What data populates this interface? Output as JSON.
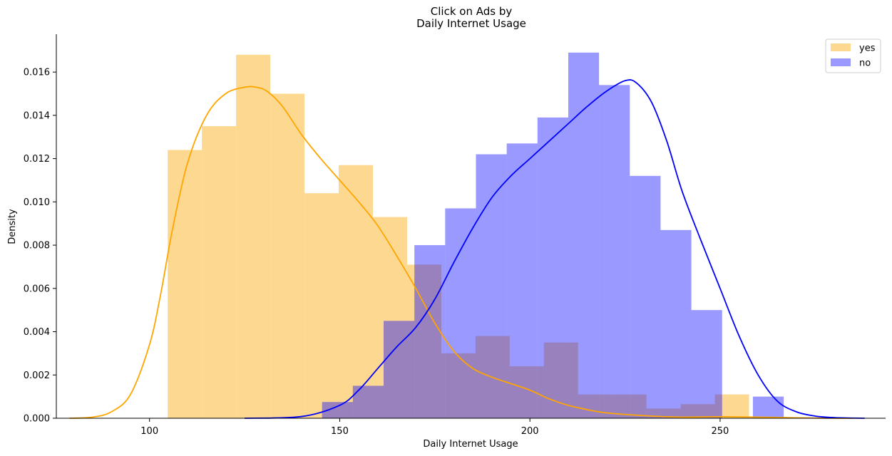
{
  "chart_data": {
    "type": "histogram",
    "title": [
      "Click on Ads by",
      "Daily Internet Usage"
    ],
    "xlabel": "Daily Internet Usage",
    "ylabel": "Density",
    "xlim": [
      75.5,
      293.5
    ],
    "ylim": [
      0,
      0.01775
    ],
    "xticks": [
      100,
      150,
      200,
      250
    ],
    "yticks": [
      0.0,
      0.002,
      0.004,
      0.006,
      0.008,
      0.01,
      0.012,
      0.014,
      0.016
    ],
    "ytick_labels": [
      "0.000",
      "0.002",
      "0.004",
      "0.006",
      "0.008",
      "0.010",
      "0.012",
      "0.014",
      "0.016"
    ],
    "grid": false,
    "legend_position": "top-right",
    "series": [
      {
        "name": "yes",
        "hist_color": "#FDD891",
        "hist_opacity": 1,
        "line_color": "#FFA500",
        "bin_edges": [
          104.78,
          113.77,
          122.76,
          131.75,
          140.74,
          149.73,
          158.72,
          167.71,
          176.7,
          185.69,
          194.68,
          203.67,
          212.66,
          221.65,
          230.64,
          239.63,
          248.62,
          257.61,
          266.6
        ],
        "densities": [
          0.0124,
          0.0135,
          0.0168,
          0.015,
          0.0104,
          0.0117,
          0.0093,
          0.0071,
          0.003,
          0.0038,
          0.0024,
          0.0035,
          0.0011,
          0.0011,
          0.00045,
          0.00065,
          0.0011,
          0.0
        ],
        "kde": {
          "x": [
            79,
            85,
            90,
            95,
            100,
            103,
            106,
            110,
            115,
            120,
            125,
            128,
            131,
            135,
            140,
            145,
            150,
            155,
            160,
            165,
            170,
            175,
            180,
            185,
            190,
            195,
            200,
            205,
            210,
            215,
            220,
            230,
            240,
            250,
            260,
            270,
            280,
            285
          ],
          "y": [
            0.0,
            5e-05,
            0.0003,
            0.0011,
            0.0034,
            0.0058,
            0.0087,
            0.0118,
            0.014,
            0.015,
            0.0153,
            0.0153,
            0.0151,
            0.0144,
            0.0131,
            0.012,
            0.011,
            0.01,
            0.0089,
            0.0075,
            0.006,
            0.0044,
            0.0031,
            0.0023,
            0.0019,
            0.0016,
            0.0013,
            0.0009,
            0.0006,
            0.0004,
            0.00025,
            0.00012,
            5e-05,
            7e-05,
            5e-05,
            2e-05,
            0.0,
            0.0
          ]
        }
      },
      {
        "name": "no",
        "hist_color": "#0000FF",
        "hist_opacity": 0.4,
        "line_color": "#0000FF",
        "bin_edges": [
          145.36,
          153.45,
          161.54,
          169.63,
          177.72,
          185.81,
          193.9,
          201.99,
          210.08,
          218.17,
          226.26,
          234.35,
          242.44,
          250.53,
          258.62,
          266.71
        ],
        "densities": [
          0.00075,
          0.0015,
          0.0045,
          0.008,
          0.0097,
          0.0122,
          0.0127,
          0.0139,
          0.0169,
          0.0154,
          0.0112,
          0.0087,
          0.005,
          0.0,
          0.001
        ],
        "kde": {
          "x": [
            125,
            140,
            150,
            155,
            160,
            165,
            170,
            175,
            180,
            185,
            190,
            195,
            200,
            205,
            210,
            215,
            220,
            225,
            228,
            232,
            236,
            240,
            245,
            250,
            255,
            260,
            265,
            270,
            275,
            280,
            288
          ],
          "y": [
            0.0,
            8e-05,
            0.0006,
            0.0013,
            0.0023,
            0.0033,
            0.0042,
            0.0055,
            0.0072,
            0.0088,
            0.0102,
            0.0112,
            0.012,
            0.0128,
            0.0136,
            0.0144,
            0.0151,
            0.0156,
            0.0155,
            0.0146,
            0.0128,
            0.0105,
            0.0082,
            0.006,
            0.0038,
            0.002,
            0.0008,
            0.0003,
            0.0001,
            3e-05,
            0.0
          ]
        }
      }
    ]
  }
}
